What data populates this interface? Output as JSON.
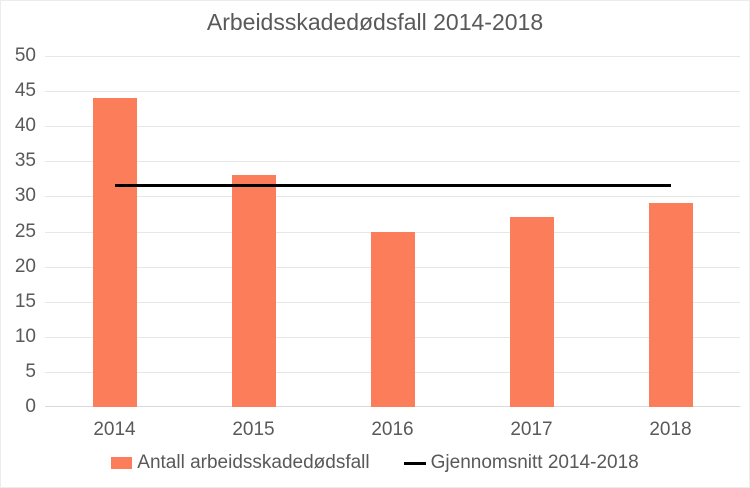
{
  "chart_data": {
    "type": "bar",
    "title": "Arbeidsskadedødsfall 2014-2018",
    "categories": [
      "2014",
      "2015",
      "2016",
      "2017",
      "2018"
    ],
    "series": [
      {
        "name": "Antall arbeidsskadedødsfall",
        "type": "bar",
        "values": [
          44,
          33,
          25,
          27,
          29
        ],
        "color": "#FB7D5A"
      },
      {
        "name": "Gjennomsnitt 2014-2018",
        "type": "line",
        "average": 31.6,
        "color": "#000000"
      }
    ],
    "xlabel": "",
    "ylabel": "",
    "ylim": [
      0,
      50
    ],
    "ytick_step": 5,
    "yticks": [
      0,
      5,
      10,
      15,
      20,
      25,
      30,
      35,
      40,
      45,
      50
    ],
    "grid": true,
    "legend_position": "bottom",
    "colors": {
      "bar": "#FB7D5A",
      "average_line": "#000000",
      "text": "#595959",
      "gridline": "#E7E7E7",
      "axis_line": "#D9D9D9",
      "background": "#FFFFFF"
    }
  }
}
